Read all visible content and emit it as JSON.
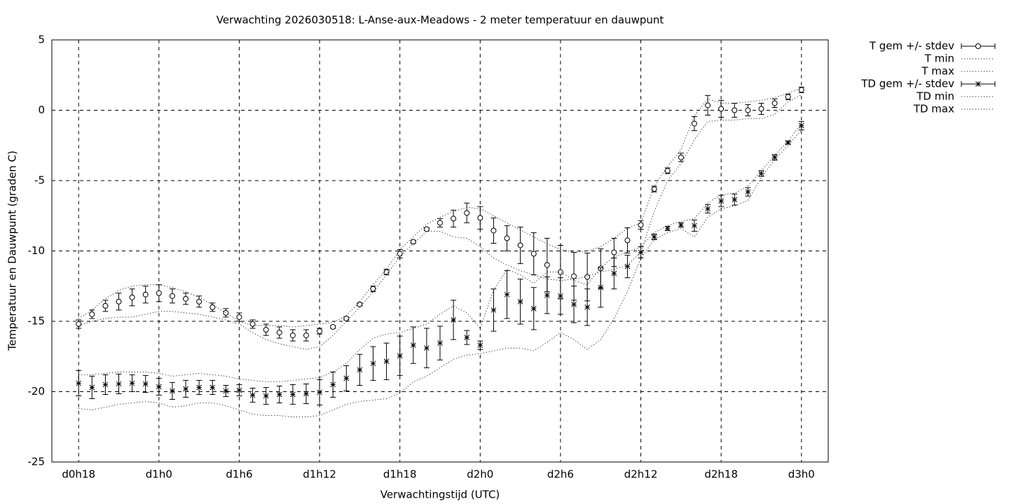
{
  "chart_data": {
    "type": "errorbar-line",
    "title": "Verwachting 2026030518: L-Anse-aux-Meadows - 2 meter temperatuur en dauwpunt",
    "xlabel": "Verwachtingstijd (UTC)",
    "ylabel": "Temperatuur en Dauwpunt (graden C)",
    "x": [
      18,
      19,
      20,
      21,
      22,
      23,
      24,
      25,
      26,
      27,
      28,
      29,
      30,
      31,
      32,
      33,
      34,
      35,
      36,
      37,
      38,
      39,
      40,
      41,
      42,
      43,
      44,
      45,
      46,
      47,
      48,
      49,
      50,
      51,
      52,
      53,
      54,
      55,
      56,
      57,
      58,
      59,
      60,
      61,
      62,
      63,
      64,
      65,
      66,
      67,
      68,
      69,
      70,
      71,
      72
    ],
    "xlim": [
      16,
      74
    ],
    "xticks": [
      {
        "value": 18,
        "label": "d0h18"
      },
      {
        "value": 24,
        "label": "d1h0"
      },
      {
        "value": 30,
        "label": "d1h6"
      },
      {
        "value": 36,
        "label": "d1h12"
      },
      {
        "value": 42,
        "label": "d1h18"
      },
      {
        "value": 48,
        "label": "d2h0"
      },
      {
        "value": 54,
        "label": "d2h6"
      },
      {
        "value": 60,
        "label": "d2h12"
      },
      {
        "value": 66,
        "label": "d2h18"
      },
      {
        "value": 72,
        "label": "d3h0"
      }
    ],
    "ylim": [
      -25,
      5
    ],
    "yticks": [
      5,
      0,
      -5,
      -10,
      -15,
      -20,
      -25
    ],
    "grid": true,
    "legend": "outside-top-right",
    "series": [
      {
        "name": "T gem +/- stdev",
        "color": "#000000",
        "style": "errorbars",
        "marker": "circle",
        "values": [
          -15.2,
          -14.5,
          -13.9,
          -13.6,
          -13.3,
          -13.1,
          -13.0,
          -13.2,
          -13.4,
          -13.6,
          -14.0,
          -14.4,
          -14.7,
          -15.2,
          -15.6,
          -15.8,
          -16.0,
          -16.0,
          -15.7,
          -15.4,
          -14.8,
          -13.8,
          -12.7,
          -11.5,
          -10.2,
          -9.35,
          -8.45,
          -8.0,
          -7.7,
          -7.3,
          -7.65,
          -8.55,
          -9.1,
          -9.6,
          -10.2,
          -11.0,
          -11.5,
          -11.8,
          -11.85,
          -11.25,
          -10.1,
          -9.25,
          -8.15,
          -5.6,
          -4.3,
          -3.35,
          -0.95,
          0.35,
          0.1,
          0.0,
          0.0,
          0.1,
          0.5,
          0.95,
          1.45
        ],
        "errors": [
          0.3,
          0.3,
          0.4,
          0.6,
          0.6,
          0.6,
          0.6,
          0.5,
          0.4,
          0.4,
          0.3,
          0.3,
          0.3,
          0.3,
          0.4,
          0.4,
          0.4,
          0.4,
          0.2,
          0.1,
          0.1,
          0.1,
          0.2,
          0.2,
          0.3,
          0.1,
          0.1,
          0.3,
          0.6,
          0.7,
          0.8,
          0.9,
          0.9,
          1.3,
          1.5,
          1.9,
          1.9,
          1.7,
          1.7,
          1.4,
          1.0,
          0.9,
          0.3,
          0.2,
          0.2,
          0.3,
          0.5,
          0.7,
          0.6,
          0.5,
          0.4,
          0.4,
          0.3,
          0.2,
          0.2
        ]
      },
      {
        "name": "T min",
        "color": "#000000",
        "style": "dotted",
        "values": [
          -15.3,
          -15.0,
          -14.8,
          -14.7,
          -14.7,
          -14.5,
          -14.3,
          -14.3,
          -14.4,
          -14.5,
          -14.7,
          -14.9,
          -15.2,
          -15.8,
          -16.3,
          -16.6,
          -16.8,
          -17.0,
          -16.8,
          -16.0,
          -15.0,
          -14.0,
          -12.9,
          -11.7,
          -10.4,
          -9.5,
          -8.6,
          -8.6,
          -9.0,
          -9.1,
          -9.7,
          -10.5,
          -11.0,
          -11.4,
          -11.7,
          -12.0,
          -12.1,
          -12.0,
          -11.8,
          -11.5,
          -11.3,
          -11.0,
          -10.1,
          -7.2,
          -5.0,
          -3.8,
          -2.1,
          -0.8,
          -0.7,
          -0.7,
          -0.6,
          -0.6,
          -0.3,
          0.6,
          1.1
        ]
      },
      {
        "name": "T max",
        "color": "#000000",
        "style": "dotted",
        "values": [
          -14.8,
          -14.2,
          -13.4,
          -12.8,
          -12.5,
          -12.4,
          -12.4,
          -12.6,
          -12.9,
          -13.3,
          -13.8,
          -14.4,
          -15.0,
          -15.3,
          -15.3,
          -15.3,
          -15.4,
          -15.3,
          -15.2,
          -15.1,
          -14.6,
          -13.6,
          -12.4,
          -11.3,
          -9.9,
          -9.0,
          -8.1,
          -7.6,
          -7.2,
          -6.9,
          -7.0,
          -7.5,
          -8.0,
          -8.5,
          -9.0,
          -9.5,
          -9.9,
          -10.1,
          -10.0,
          -9.7,
          -9.1,
          -8.4,
          -8.0,
          -5.4,
          -4.0,
          -2.8,
          -0.4,
          0.8,
          0.5,
          0.5,
          0.6,
          0.7,
          0.9,
          1.2,
          1.6
        ]
      },
      {
        "name": "TD gem +/- stdev",
        "color": "#000000",
        "style": "errorbars",
        "marker": "star",
        "values": [
          -19.4,
          -19.7,
          -19.5,
          -19.45,
          -19.4,
          -19.45,
          -19.65,
          -19.95,
          -19.8,
          -19.7,
          -19.7,
          -19.95,
          -19.9,
          -20.25,
          -20.3,
          -20.2,
          -20.2,
          -20.15,
          -20.05,
          -19.5,
          -19.05,
          -18.45,
          -18.0,
          -17.85,
          -17.45,
          -16.7,
          -16.9,
          -16.55,
          -14.9,
          -16.15,
          -16.7,
          -14.2,
          -13.1,
          -13.6,
          -14.1,
          -13.15,
          -13.2,
          -13.8,
          -14.0,
          -12.6,
          -11.6,
          -11.1,
          -10.1,
          -9.0,
          -8.4,
          -8.15,
          -8.2,
          -7.0,
          -6.45,
          -6.35,
          -5.8,
          -4.5,
          -3.35,
          -2.3,
          -1.1
        ],
        "errors": [
          0.9,
          0.8,
          0.7,
          0.7,
          0.6,
          0.6,
          0.6,
          0.6,
          0.6,
          0.5,
          0.5,
          0.4,
          0.4,
          0.5,
          0.6,
          0.6,
          0.7,
          0.7,
          0.9,
          0.9,
          0.9,
          1.1,
          1.2,
          1.3,
          1.4,
          1.3,
          1.4,
          1.2,
          1.4,
          0.5,
          0.3,
          1.5,
          1.7,
          1.6,
          1.5,
          1.3,
          1.3,
          1.3,
          1.3,
          1.4,
          1.1,
          0.8,
          0.4,
          0.2,
          0.15,
          0.15,
          0.4,
          0.3,
          0.4,
          0.4,
          0.3,
          0.2,
          0.2,
          0.1,
          0.3
        ]
      },
      {
        "name": "TD min",
        "color": "#000000",
        "style": "dotted",
        "values": [
          -21.2,
          -21.3,
          -21.1,
          -20.9,
          -20.8,
          -20.7,
          -20.8,
          -21.1,
          -21.0,
          -20.8,
          -20.8,
          -21.0,
          -21.3,
          -21.6,
          -21.7,
          -21.7,
          -21.8,
          -21.8,
          -21.7,
          -21.3,
          -20.9,
          -20.7,
          -20.6,
          -20.5,
          -20.1,
          -19.3,
          -18.9,
          -18.3,
          -17.7,
          -17.4,
          -17.3,
          -17.1,
          -16.9,
          -16.9,
          -17.1,
          -16.5,
          -15.8,
          -16.3,
          -17.0,
          -16.3,
          -14.8,
          -12.9,
          -10.5,
          -9.2,
          -8.7,
          -8.4,
          -9.0,
          -7.6,
          -7.0,
          -6.8,
          -6.4,
          -4.8,
          -3.5,
          -2.5,
          -1.4
        ]
      },
      {
        "name": "TD max",
        "color": "#000000",
        "style": "dotted",
        "values": [
          -18.8,
          -18.8,
          -18.7,
          -18.6,
          -18.6,
          -18.6,
          -18.7,
          -18.9,
          -18.8,
          -18.7,
          -18.8,
          -18.9,
          -19.1,
          -19.2,
          -19.3,
          -19.3,
          -19.2,
          -19.1,
          -19.0,
          -18.6,
          -18.0,
          -17.0,
          -16.2,
          -15.9,
          -15.8,
          -15.5,
          -15.2,
          -14.5,
          -13.9,
          -14.4,
          -15.5,
          -12.8,
          -11.3,
          -11.7,
          -12.3,
          -11.5,
          -11.5,
          -12.1,
          -12.4,
          -11.2,
          -10.4,
          -10.1,
          -9.7,
          -8.7,
          -8.2,
          -7.9,
          -7.7,
          -6.6,
          -6.0,
          -5.9,
          -5.4,
          -4.3,
          -3.2,
          -2.2,
          -0.9
        ]
      }
    ]
  }
}
